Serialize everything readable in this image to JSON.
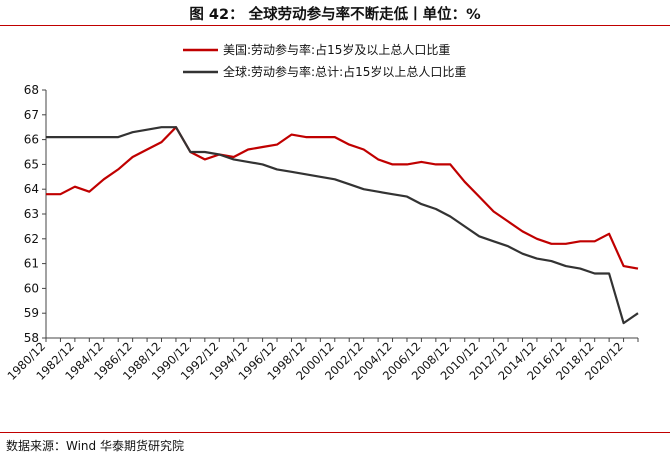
{
  "header": {
    "title": "图 42： 全球劳动参与率不断走低丨单位：%"
  },
  "footer": {
    "source": "数据来源：Wind 华泰期货研究院"
  },
  "chart_data": {
    "type": "line",
    "title": "",
    "xlabel": "",
    "ylabel": "",
    "ylim": [
      58,
      68
    ],
    "yticks": [
      58,
      59,
      60,
      61,
      62,
      63,
      64,
      65,
      66,
      67,
      68
    ],
    "x": [
      1980,
      1981,
      1982,
      1983,
      1984,
      1985,
      1986,
      1987,
      1988,
      1989,
      1990,
      1991,
      1992,
      1993,
      1994,
      1995,
      1996,
      1997,
      1998,
      1999,
      2000,
      2001,
      2002,
      2003,
      2004,
      2005,
      2006,
      2007,
      2008,
      2009,
      2010,
      2011,
      2012,
      2013,
      2014,
      2015,
      2016,
      2017,
      2018,
      2019,
      2020,
      2021
    ],
    "xticks": [
      "1980/12",
      "1982/12",
      "1984/12",
      "1986/12",
      "1988/12",
      "1990/12",
      "1992/12",
      "1994/12",
      "1996/12",
      "1998/12",
      "2000/12",
      "2002/12",
      "2004/12",
      "2006/12",
      "2008/12",
      "2010/12",
      "2012/12",
      "2014/12",
      "2016/12",
      "2018/12",
      "2020/12"
    ],
    "grid": false,
    "legend_position": "top-center",
    "series": [
      {
        "name": "美国:劳动参与率:占15岁及以上总人口比重",
        "color": "#c00000",
        "values": [
          63.8,
          63.8,
          64.1,
          63.9,
          64.4,
          64.8,
          65.3,
          65.6,
          65.9,
          66.5,
          65.5,
          65.2,
          65.4,
          65.3,
          65.6,
          65.7,
          65.8,
          66.2,
          66.1,
          66.1,
          66.1,
          65.8,
          65.6,
          65.2,
          65.0,
          65.0,
          65.1,
          65.0,
          65.0,
          64.3,
          63.7,
          63.1,
          62.7,
          62.3,
          62.0,
          61.8,
          61.8,
          61.9,
          61.9,
          62.2,
          60.9,
          60.8
        ]
      },
      {
        "name": "全球:劳动参与率:总计:占15岁以上总人口比重",
        "color": "#333333",
        "values": [
          66.1,
          66.1,
          66.1,
          66.1,
          66.1,
          66.1,
          66.3,
          66.4,
          66.5,
          66.5,
          65.5,
          65.5,
          65.4,
          65.2,
          65.1,
          65.0,
          64.8,
          64.7,
          64.6,
          64.5,
          64.4,
          64.2,
          64.0,
          63.9,
          63.8,
          63.7,
          63.4,
          63.2,
          62.9,
          62.5,
          62.1,
          61.9,
          61.7,
          61.4,
          61.2,
          61.1,
          60.9,
          60.8,
          60.6,
          60.6,
          58.6,
          59.0
        ]
      }
    ]
  }
}
